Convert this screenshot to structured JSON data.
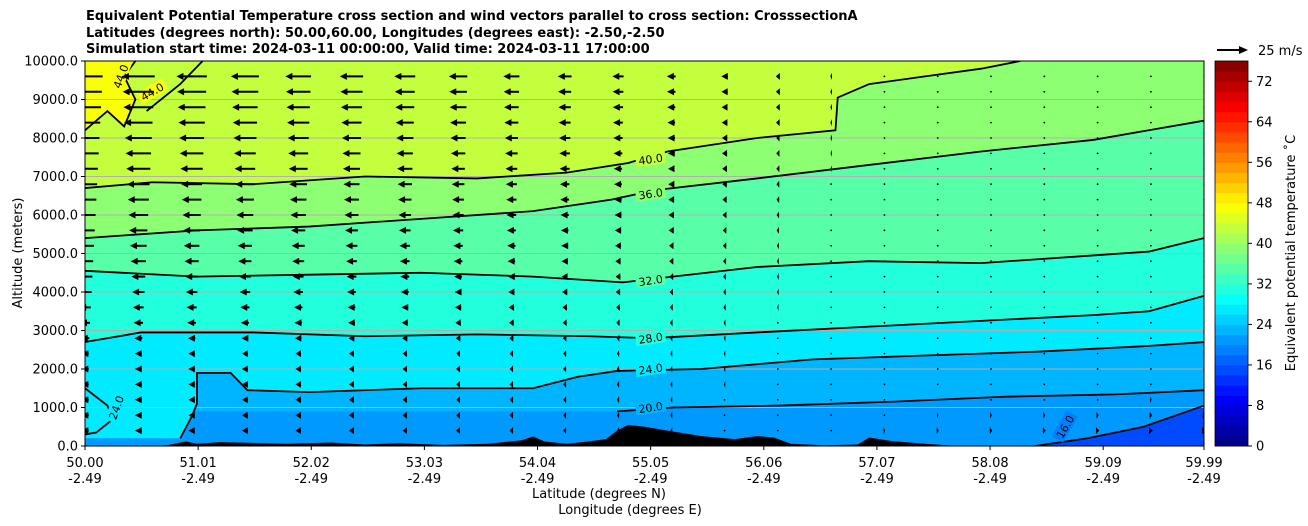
{
  "title_lines": [
    "Equivalent Potential Temperature cross section and wind vectors parallel to cross section: CrosssectionA",
    "Latitudes (degrees north): 50.00,60.00, Longitudes (degrees east): -2.50,-2.50",
    "Simulation start time: 2024-03-11 00:00:00, Valid time: 2024-03-11 17:00:00"
  ],
  "chart_data": {
    "type": "heatmap",
    "ylabel": "Altitude (meters)",
    "xlabel_line1": "Latitude (degrees N)",
    "xlabel_line2": "Longitude (degrees E)",
    "y_ticks": [
      "0.0",
      "1000.0",
      "2000.0",
      "3000.0",
      "4000.0",
      "5000.0",
      "6000.0",
      "7000.0",
      "8000.0",
      "9000.0",
      "10000.0"
    ],
    "ylim": [
      0,
      10000
    ],
    "x_ticks": [
      {
        "lat": "50.00",
        "lon": "-2.49"
      },
      {
        "lat": "51.01",
        "lon": "-2.49"
      },
      {
        "lat": "52.02",
        "lon": "-2.49"
      },
      {
        "lat": "53.03",
        "lon": "-2.49"
      },
      {
        "lat": "54.04",
        "lon": "-2.49"
      },
      {
        "lat": "55.05",
        "lon": "-2.49"
      },
      {
        "lat": "56.06",
        "lon": "-2.49"
      },
      {
        "lat": "57.07",
        "lon": "-2.49"
      },
      {
        "lat": "58.08",
        "lon": "-2.49"
      },
      {
        "lat": "59.09",
        "lon": "-2.49"
      },
      {
        "lat": "59.99",
        "lon": "-2.49"
      }
    ],
    "xlim": [
      50.0,
      59.99
    ],
    "grid": "horizontal",
    "colorbar": {
      "label": "Equivalent potential temperature ˚C",
      "ticks": [
        "0",
        "8",
        "16",
        "24",
        "32",
        "40",
        "48",
        "56",
        "64",
        "72"
      ],
      "range": [
        0,
        76
      ],
      "levels": 38
    },
    "contours": [
      {
        "value": 16.0,
        "label": "16.0",
        "points": [
          [
            58.48,
            0
          ],
          [
            58.95,
            200
          ],
          [
            59.45,
            500
          ],
          [
            59.99,
            1050
          ]
        ]
      },
      {
        "value": 20.0,
        "label": "20.0",
        "points": [
          [
            54.75,
            900
          ],
          [
            55.25,
            1000
          ],
          [
            56.2,
            1050
          ],
          [
            57.2,
            1150
          ],
          [
            58.2,
            1280
          ],
          [
            59.2,
            1340
          ],
          [
            59.99,
            1450
          ]
        ]
      },
      {
        "value": 24.0,
        "label": "24.0",
        "points": [
          [
            50.0,
            1500
          ],
          [
            50.2,
            1050
          ],
          [
            50.25,
            700
          ],
          [
            50.1,
            350
          ],
          [
            50.0,
            300
          ]
        ]
      },
      {
        "value": 24.0,
        "label": "24.0",
        "points": [
          [
            50.85,
            200
          ],
          [
            50.95,
            750
          ],
          [
            51.0,
            1100
          ],
          [
            51.0,
            1900
          ],
          [
            51.3,
            1900
          ],
          [
            51.45,
            1450
          ],
          [
            52.0,
            1400
          ],
          [
            53.0,
            1500
          ],
          [
            54.0,
            1500
          ],
          [
            54.4,
            1800
          ],
          [
            54.75,
            1950
          ],
          [
            55.5,
            2000
          ],
          [
            56.5,
            2250
          ],
          [
            57.5,
            2350
          ],
          [
            58.5,
            2450
          ],
          [
            59.5,
            2600
          ],
          [
            59.99,
            2700
          ]
        ]
      },
      {
        "value": 28.0,
        "label": "28.0",
        "points": [
          [
            50.0,
            2700
          ],
          [
            50.5,
            2950
          ],
          [
            51.5,
            2950
          ],
          [
            52.5,
            2850
          ],
          [
            53.5,
            2900
          ],
          [
            54.5,
            2850
          ],
          [
            55.05,
            2800
          ],
          [
            56.0,
            2950
          ],
          [
            57.0,
            3100
          ],
          [
            58.0,
            3250
          ],
          [
            59.0,
            3400
          ],
          [
            59.5,
            3500
          ],
          [
            59.99,
            3900
          ]
        ]
      },
      {
        "value": 32.0,
        "label": "32.0",
        "points": [
          [
            50.0,
            4550
          ],
          [
            51.0,
            4400
          ],
          [
            52.0,
            4450
          ],
          [
            53.0,
            4500
          ],
          [
            54.0,
            4400
          ],
          [
            54.8,
            4250
          ],
          [
            55.1,
            4350
          ],
          [
            56.0,
            4650
          ],
          [
            57.0,
            4800
          ],
          [
            58.0,
            4750
          ],
          [
            59.0,
            4950
          ],
          [
            59.5,
            5050
          ],
          [
            59.99,
            5400
          ]
        ]
      },
      {
        "value": 36.0,
        "label": "36.0",
        "points": [
          [
            50.0,
            5400
          ],
          [
            51.0,
            5600
          ],
          [
            52.0,
            5700
          ],
          [
            53.0,
            5900
          ],
          [
            54.0,
            6100
          ],
          [
            54.7,
            6400
          ],
          [
            55.1,
            6650
          ],
          [
            56.0,
            6950
          ],
          [
            57.0,
            7300
          ],
          [
            58.0,
            7650
          ],
          [
            59.0,
            7950
          ],
          [
            59.99,
            8450
          ]
        ]
      },
      {
        "value": 40.0,
        "label": "40.0",
        "points": [
          [
            50.0,
            6700
          ],
          [
            50.6,
            6850
          ],
          [
            51.5,
            6800
          ],
          [
            52.5,
            7000
          ],
          [
            53.5,
            6950
          ],
          [
            54.3,
            7100
          ],
          [
            54.85,
            7350
          ],
          [
            55.2,
            7650
          ],
          [
            56.0,
            8000
          ],
          [
            56.7,
            8200
          ],
          [
            56.72,
            9050
          ],
          [
            57.0,
            9400
          ],
          [
            57.5,
            9600
          ],
          [
            58.0,
            9800
          ],
          [
            58.35,
            10000
          ]
        ]
      },
      {
        "value": 44.0,
        "label": "44.0",
        "points": [
          [
            50.0,
            8200
          ],
          [
            50.2,
            8700
          ],
          [
            50.35,
            8300
          ],
          [
            50.45,
            9000
          ],
          [
            50.35,
            9600
          ],
          [
            50.45,
            10000
          ]
        ]
      },
      {
        "value": 44.0,
        "label": "44.0",
        "points": [
          [
            50.55,
            8700
          ],
          [
            50.85,
            9400
          ],
          [
            51.05,
            10000
          ]
        ]
      }
    ],
    "quiver_reference": {
      "label": "25 m/s",
      "value": 25
    },
    "wind_vectors_note": "",
    "terrain_max_m": 600
  }
}
